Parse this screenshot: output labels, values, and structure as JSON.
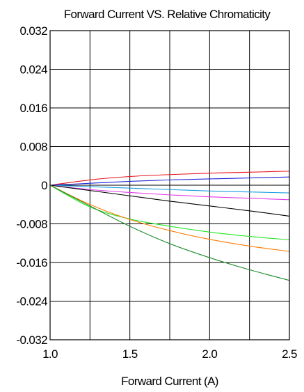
{
  "chart_data": {
    "type": "line",
    "title": "Forward Current VS. Relative Chromaticity",
    "xlabel": "Forward Current (A)",
    "ylabel": "",
    "xlim": [
      1.0,
      2.5
    ],
    "ylim": [
      -0.032,
      0.032
    ],
    "x_ticks": [
      "1.0",
      "1.5",
      "2.0",
      "2.5"
    ],
    "y_ticks": [
      "0.032",
      "0.024",
      "0.016",
      "0.008",
      "0",
      "-0.008",
      "-0.016",
      "-0.024",
      "-0.032"
    ],
    "grid": true,
    "x": [
      1.0,
      1.25,
      1.5,
      1.75,
      2.0,
      2.25,
      2.5
    ],
    "series": [
      {
        "color": "#e8141e",
        "values": [
          0,
          0.0011,
          0.0018,
          0.0022,
          0.0025,
          0.0027,
          0.0029
        ]
      },
      {
        "color": "#1d26d6",
        "values": [
          0,
          0.0004,
          0.0008,
          0.0011,
          0.0013,
          0.0015,
          0.0017
        ]
      },
      {
        "color": "#1b9de0",
        "values": [
          0,
          -0.0003,
          -0.0006,
          -0.0009,
          -0.0012,
          -0.0014,
          -0.0016
        ]
      },
      {
        "color": "#e23ae8",
        "values": [
          0,
          -0.0009,
          -0.0015,
          -0.002,
          -0.0024,
          -0.0027,
          -0.003
        ]
      },
      {
        "color": "#000000",
        "values": [
          0,
          -0.0011,
          -0.0022,
          -0.0033,
          -0.0043,
          -0.0053,
          -0.0064
        ]
      },
      {
        "color": "#23e624",
        "values": [
          0,
          -0.0045,
          -0.007,
          -0.0085,
          -0.0097,
          -0.0106,
          -0.0113
        ]
      },
      {
        "color": "#ff7a00",
        "values": [
          0,
          -0.004,
          -0.0071,
          -0.0094,
          -0.0112,
          -0.0126,
          -0.0137
        ]
      },
      {
        "color": "#1e8a2c",
        "values": [
          0,
          -0.0043,
          -0.0085,
          -0.0121,
          -0.015,
          -0.0175,
          -0.0197
        ]
      }
    ]
  }
}
